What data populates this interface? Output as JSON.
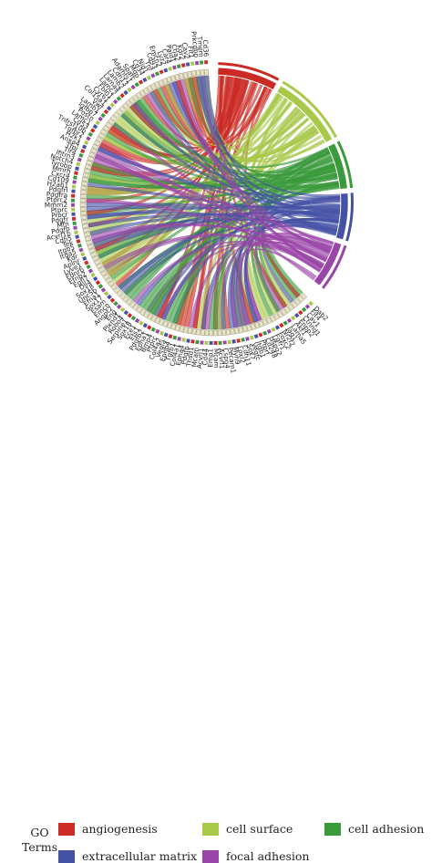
{
  "genes_by_segment": [
    {
      "segment": "right",
      "genes": [
        "Dab2",
        "Flt4",
        "Cav1",
        "Ctnnd1",
        "Enpp2",
        "Akt1",
        "Lama5",
        "Jag1",
        "Nr2f2",
        "Foxc2",
        "Fgfr1",
        "Hspg2",
        "Cd248",
        "Ptprf",
        "Itgb1",
        "Vegfc",
        "Sox7",
        "Cdh11",
        "Loxl2",
        "Myh9",
        "Pecam1",
        "Cspg4",
        "Acvrl1",
        "Mcam"
      ]
    },
    {
      "segment": "bottom-right",
      "genes": [
        "Emp1",
        "Cd44",
        "Acvrl1",
        "Mcam",
        "Thsd1",
        "Pdgfb",
        "Epha4",
        "Col4a1",
        "Tgfb1",
        "Ephb4",
        "Vegfa",
        "Col4a2",
        "Ptprc",
        "Bmp4",
        "Epha1",
        "Pdgfb2",
        "Ets1",
        "Ece1",
        "Sox18",
        "Serpine1",
        "Robo4",
        "Plxnd1",
        "Eng"
      ]
    },
    {
      "segment": "bottom",
      "genes": [
        "Angpt2",
        "Emcn",
        "Esam",
        "Sox17",
        "Efna1",
        "Unc5b",
        "Sox18",
        "Dll4",
        "Egfl7",
        "Efnb2",
        "Ednrb",
        "Lyve1",
        "Aplnr",
        "Kdr",
        "Itga5",
        "Itgb5",
        "Tek",
        "Cdh5",
        "Acvrl1b",
        "Pdgfb",
        "Mfn",
        "Pdgfr"
      ]
    },
    {
      "segment": "left",
      "genes": [
        "Procr",
        "Ptprc",
        "Mmrn2",
        "Ptprc2",
        "Pdgfra",
        "Pdgfrl",
        "H2ab1",
        "Cd109",
        "Cxcr4",
        "Mmrn",
        "Tyrobp",
        "Notch4",
        "Ifitm3",
        "Tlr4",
        "Tfpi",
        "Anxa4",
        "H2k1",
        "Tgfbr2",
        "Tnfrsf10b",
        "Cd53",
        "Lamc1",
        "Postn",
        "Igfbp7",
        "Lamb1",
        "Vwf",
        "Col15a1",
        "Cyr61",
        "Fbln1",
        "Lamc2",
        "Lama4",
        "Lamb2",
        "Cdh13",
        "Adamts1",
        "Sparc",
        "Mgp",
        "Cd34",
        "Nid1",
        "Tnf",
        "Cd93",
        "Emcn2",
        "Lyz2",
        "Car4",
        "Pald1",
        "Ctla2",
        "Kdr2",
        "Cav2",
        "Flt1",
        "Prkcdbp",
        "Tmem",
        "Cd36"
      ]
    }
  ],
  "legend": {
    "title_line1": "GO",
    "title_line2": "Terms",
    "items": [
      {
        "label": "angiogenesis",
        "color": "#cc2a24",
        "key": "angiogenesis"
      },
      {
        "label": "cell surface",
        "color": "#a8c84a",
        "key": "cell-surface"
      },
      {
        "label": "cell adhesion",
        "color": "#3a9a3c",
        "key": "cell-adhesion"
      },
      {
        "label": "extracellular matrix",
        "color": "#4552a4",
        "key": "extracellular-matrix"
      },
      {
        "label": "focal adhesion",
        "color": "#9a46a8",
        "key": "focal-adhesion"
      }
    ]
  },
  "go_terms": [
    {
      "name": "angiogenesis",
      "color": "#cc2a24"
    },
    {
      "name": "cell surface",
      "color": "#a8c84a"
    },
    {
      "name": "cell adhesion",
      "color": "#3a9a3c"
    },
    {
      "name": "extracellular matrix",
      "color": "#4552a4"
    },
    {
      "name": "focal adhesion",
      "color": "#9a46a8"
    }
  ]
}
